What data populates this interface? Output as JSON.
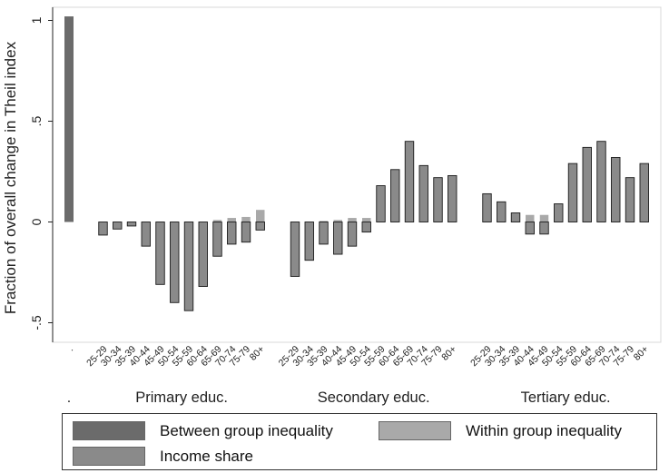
{
  "chart_data": {
    "type": "bar",
    "ylabel": "Fraction of overall change in Theil index",
    "yticks": [
      1,
      0.5,
      0,
      -0.5
    ],
    "ytick_labels": [
      "1",
      ".5",
      "0",
      "-.5"
    ],
    "ylim": [
      -0.56,
      1.04
    ],
    "between": {
      "category": ".",
      "group_label": ".",
      "value": 1.02
    },
    "groups": [
      {
        "label": "Primary educ."
      },
      {
        "label": "Secondary educ."
      },
      {
        "label": "Tertiary educ."
      }
    ],
    "age_categories": [
      "25-29",
      "30-34",
      "35-39",
      "40-44",
      "45-49",
      "50-54",
      "55-59",
      "60-64",
      "65-69",
      "70-74",
      "75-79",
      "80+"
    ],
    "series": [
      {
        "name": "Within group inequality",
        "values": [
          [
            -0.005,
            -0.005,
            -0.005,
            -0.01,
            -0.015,
            -0.015,
            -0.02,
            -0.025,
            0.01,
            0.02,
            0.025,
            0.06
          ],
          [
            -0.01,
            -0.01,
            0.005,
            0.01,
            0.02,
            0.02,
            0.02,
            0.035,
            0.045,
            0.055,
            0.045,
            0.035
          ],
          [
            0.045,
            0.045,
            0.04,
            0.035,
            0.035,
            0.04,
            0.045,
            0.055,
            0.06,
            0.055,
            0.04,
            0.035
          ]
        ]
      },
      {
        "name": "Income share",
        "values": [
          [
            -0.065,
            -0.035,
            -0.02,
            -0.12,
            -0.31,
            -0.4,
            -0.44,
            -0.32,
            -0.17,
            -0.11,
            -0.1,
            -0.04
          ],
          [
            -0.27,
            -0.19,
            -0.11,
            -0.16,
            -0.12,
            -0.05,
            0.18,
            0.26,
            0.4,
            0.28,
            0.22,
            0.23
          ],
          [
            0.14,
            0.1,
            0.045,
            -0.06,
            -0.06,
            0.09,
            0.29,
            0.37,
            0.4,
            0.32,
            0.22,
            0.29
          ]
        ]
      }
    ],
    "colors": {
      "between": "#6b6b6b",
      "within": "#a9a9a9",
      "income": "#8a8a8a",
      "outline": "#1a1a1a"
    },
    "legend": {
      "placement": "bottom",
      "entries": [
        "Between group inequality",
        "Within group inequality",
        "Income share"
      ]
    }
  }
}
